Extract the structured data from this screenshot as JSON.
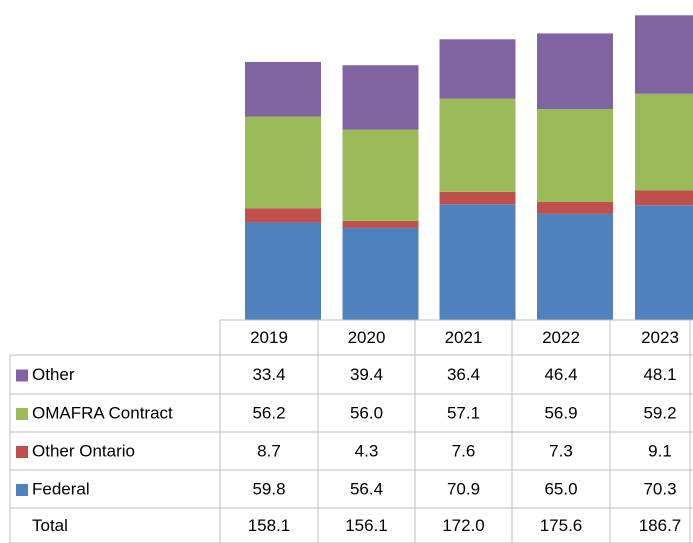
{
  "chart_data": {
    "type": "stacked-bar",
    "categories": [
      "2019",
      "2020",
      "2021",
      "2022",
      "2023"
    ],
    "series": [
      {
        "name": "Other",
        "color": "#8064a2",
        "values": [
          33.4,
          39.4,
          36.4,
          46.4,
          48.1
        ],
        "value_labels": [
          "33.4",
          "39.4",
          "36.4",
          "46.4",
          "48.1"
        ]
      },
      {
        "name": "OMAFRA Contract",
        "color": "#9bbb59",
        "values": [
          56.2,
          56.0,
          57.1,
          56.9,
          59.2
        ],
        "value_labels": [
          "56.2",
          "56.0",
          "57.1",
          "56.9",
          "59.2"
        ]
      },
      {
        "name": "Other Ontario",
        "color": "#c0504d",
        "values": [
          8.7,
          4.3,
          7.6,
          7.3,
          9.1
        ],
        "value_labels": [
          "8.7",
          "4.3",
          "7.6",
          "7.3",
          "9.1"
        ]
      },
      {
        "name": "Federal",
        "color": "#4f81bd",
        "values": [
          59.8,
          56.4,
          70.9,
          65.0,
          70.3
        ],
        "value_labels": [
          "59.8",
          "56.4",
          "70.9",
          "65.0",
          "70.3"
        ]
      }
    ],
    "total": {
      "name": "Total",
      "values": [
        158.1,
        156.1,
        172.0,
        175.6,
        186.7
      ],
      "value_labels": [
        "158.1",
        "156.1",
        "172.0",
        "175.6",
        "186.7"
      ]
    }
  }
}
